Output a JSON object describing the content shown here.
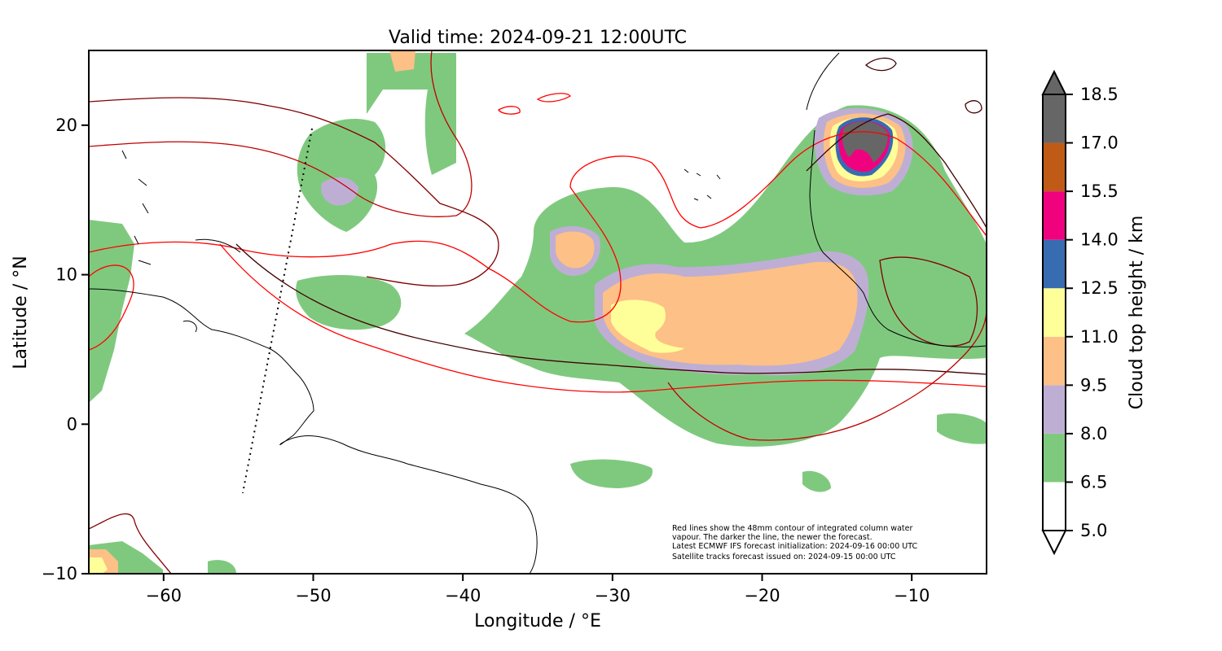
{
  "figure": {
    "title": "Valid time: 2024-09-21 12:00UTC",
    "xlabel": "Longitude / °E",
    "ylabel": "Latitude / °N",
    "colorbar_label": "Cloud top height / km",
    "annotation": [
      "Red lines show the 48mm contour of integrated column water",
      "vapour. The darker the line, the newer the forecast.",
      "Latest ECMWF IFS forecast initialization: 2024-09-16 00:00 UTC",
      "Satellite tracks forecast issued on: 2024-09-15 00:00 UTC"
    ]
  },
  "chart_data": {
    "type": "map",
    "xlim": [
      -65,
      -5
    ],
    "ylim": [
      -10,
      25
    ],
    "xticks": [
      -60,
      -50,
      -40,
      -30,
      -20,
      -10
    ],
    "xtick_labels": [
      "−60",
      "−50",
      "−40",
      "−30",
      "−20",
      "−10"
    ],
    "yticks": [
      -10,
      0,
      10,
      20
    ],
    "ytick_labels": [
      "−10",
      "0",
      "10",
      "20"
    ],
    "colorbar": {
      "levels": [
        5.0,
        6.5,
        8.0,
        9.5,
        11.0,
        12.5,
        14.0,
        15.5,
        17.0,
        18.5
      ],
      "level_labels": [
        "5.0",
        "6.5",
        "8.0",
        "9.5",
        "11.0",
        "12.5",
        "14.0",
        "15.5",
        "17.0",
        "18.5"
      ],
      "colors": [
        "#ffffff",
        "#7fc97f",
        "#beaed4",
        "#fdc086",
        "#ffff99",
        "#386cb0",
        "#f0027f",
        "#bf5b17",
        "#666666"
      ],
      "extend": "both"
    },
    "contour_colors": [
      "#ff0000",
      "#c00000",
      "#800000",
      "#400000"
    ],
    "coast_color": "#000000"
  }
}
